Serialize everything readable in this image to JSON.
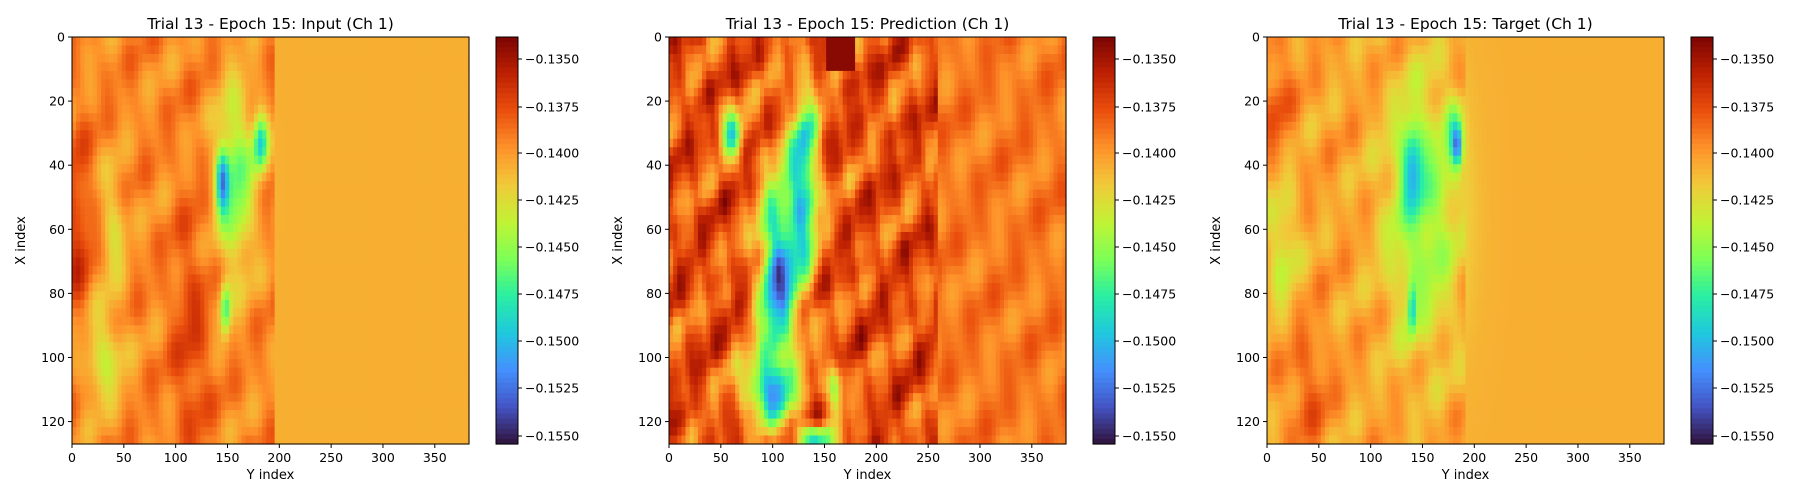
{
  "colormap": {
    "name": "turbo",
    "stops": [
      "#30123b",
      "#4454c4",
      "#4490fe",
      "#1fc8de",
      "#29efa2",
      "#7dff56",
      "#c1f334",
      "#f1ca3a",
      "#fe922a",
      "#ea4f0d",
      "#be2102",
      "#7a0403"
    ]
  },
  "chart_data": [
    {
      "type": "heatmap",
      "title": "Trial 13 - Epoch 15: Input (Ch 1)",
      "xlabel": "Y index",
      "ylabel": "X index",
      "xlim": [
        0,
        383
      ],
      "ylim": [
        127,
        0
      ],
      "x_ticks": [
        "0",
        "50",
        "100",
        "150",
        "200",
        "250",
        "300",
        "350"
      ],
      "y_ticks": [
        "0",
        "20",
        "40",
        "60",
        "80",
        "100",
        "120"
      ],
      "colorbar": {
        "range": [
          -0.1558,
          -0.1341
        ],
        "ticks": [
          "−0.1350",
          "−0.1375",
          "−0.1400",
          "−0.1425",
          "−0.1450",
          "−0.1475",
          "−0.1500",
          "−0.1525",
          "−0.1550"
        ]
      }
    },
    {
      "type": "heatmap",
      "title": "Trial 13 - Epoch 15: Prediction (Ch 1)",
      "xlabel": "Y index",
      "ylabel": "X index",
      "xlim": [
        0,
        383
      ],
      "ylim": [
        127,
        0
      ],
      "x_ticks": [
        "0",
        "50",
        "100",
        "150",
        "200",
        "250",
        "300",
        "350"
      ],
      "y_ticks": [
        "0",
        "20",
        "40",
        "60",
        "80",
        "100",
        "120"
      ],
      "colorbar": {
        "range": [
          -0.1558,
          -0.1341
        ],
        "ticks": [
          "−0.1350",
          "−0.1375",
          "−0.1400",
          "−0.1425",
          "−0.1450",
          "−0.1475",
          "−0.1500",
          "−0.1525",
          "−0.1550"
        ]
      }
    },
    {
      "type": "heatmap",
      "title": "Trial 13 - Epoch 15: Target (Ch 1)",
      "xlabel": "Y index",
      "ylabel": "X index",
      "xlim": [
        0,
        383
      ],
      "ylim": [
        127,
        0
      ],
      "x_ticks": [
        "0",
        "50",
        "100",
        "150",
        "200",
        "250",
        "300",
        "350"
      ],
      "y_ticks": [
        "0",
        "20",
        "40",
        "60",
        "80",
        "100",
        "120"
      ],
      "colorbar": {
        "range": [
          -0.1558,
          -0.1341
        ],
        "ticks": [
          "−0.1350",
          "−0.1375",
          "−0.1400",
          "−0.1425",
          "−0.1450",
          "−0.1475",
          "−0.1500",
          "−0.1525",
          "−0.1550"
        ]
      }
    }
  ]
}
